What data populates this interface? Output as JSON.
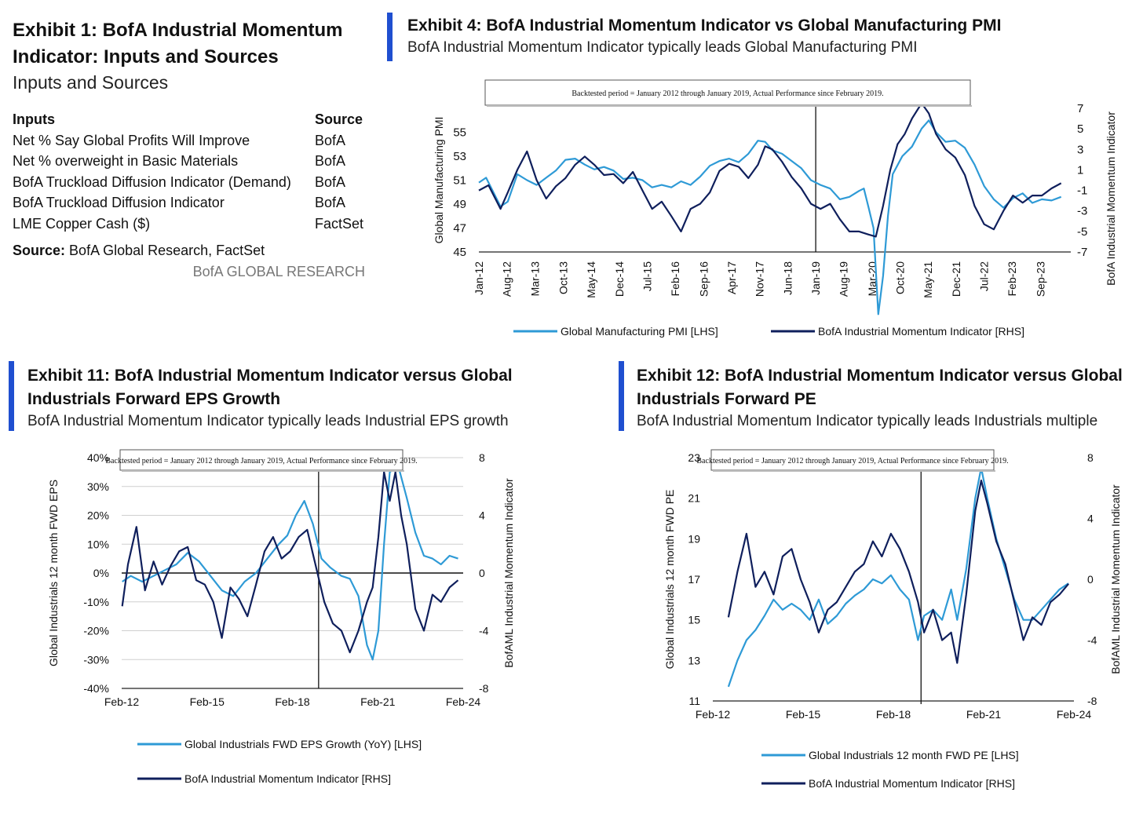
{
  "colors": {
    "accent_bar": "#1f4fd0",
    "pmi_light": "#2e9ad6",
    "momentum_dark": "#0f1f5c"
  },
  "exhibit1": {
    "title": "Exhibit 1: BofA Industrial Momentum Indicator: Inputs and Sources",
    "subtitle": "Inputs and Sources",
    "table": {
      "headers": [
        "Inputs",
        "Source"
      ],
      "rows": [
        [
          "Net % Say Global Profits Will Improve",
          "BofA"
        ],
        [
          "Net % overweight in Basic Materials",
          "BofA"
        ],
        [
          "BofA Truckload Diffusion Indicator (Demand)",
          "BofA"
        ],
        [
          "BofA Truckload Diffusion Indicator",
          "BofA"
        ],
        [
          "LME Copper Cash ($)",
          "FactSet"
        ]
      ]
    },
    "source_label": "Source:",
    "source_text": "BofA Global Research, FactSet",
    "brand": "BofA GLOBAL RESEARCH"
  },
  "exhibit4": {
    "title": "Exhibit 4: BofA Industrial Momentum Indicator vs Global Manufacturing PMI",
    "subtitle": "BofA Industrial Momentum Indicator typically leads Global Manufacturing PMI"
  },
  "exhibit11": {
    "title_line1": "Exhibit 11: BofA Industrial Momentum Indicator versus Global",
    "title_line2": "Industrials Forward EPS Growth",
    "subtitle": "BofA Industrial Momentum Indicator typically leads Industrial EPS growth"
  },
  "exhibit12": {
    "title_line1": "Exhibit 12: BofA Industrial Momentum Indicator versus Global",
    "title_line2": "Industrials Forward PE",
    "subtitle": "BofA Industrial Momentum Indicator typically leads Industrials multiple"
  },
  "chart_data": [
    {
      "id": "pmi",
      "type": "line",
      "annotation": "Backtested period = January 2012 through January 2019, Actual Performance since February 2019.",
      "ylabel_left": "Global Manufacturing PMI",
      "ylabel_right": "BofA Industrial Momentum Indicator",
      "ylim_left": [
        45,
        57
      ],
      "ylim_right": [
        -7,
        7
      ],
      "yticks_left": [
        45,
        47,
        49,
        51,
        53,
        55
      ],
      "yticks_right": [
        -7,
        -5,
        -3,
        -1,
        1,
        3,
        5,
        7
      ],
      "x_range": [
        2012.0,
        2024.3
      ],
      "xticks": [
        {
          "label": "Jan-12",
          "x": 2012.0
        },
        {
          "label": "Aug-12",
          "x": 2012.58
        },
        {
          "label": "Mar-13",
          "x": 2013.17
        },
        {
          "label": "Oct-13",
          "x": 2013.75
        },
        {
          "label": "May-14",
          "x": 2014.33
        },
        {
          "label": "Dec-14",
          "x": 2014.92
        },
        {
          "label": "Jul-15",
          "x": 2015.5
        },
        {
          "label": "Feb-16",
          "x": 2016.08
        },
        {
          "label": "Sep-16",
          "x": 2016.67
        },
        {
          "label": "Apr-17",
          "x": 2017.25
        },
        {
          "label": "Nov-17",
          "x": 2017.83
        },
        {
          "label": "Jun-18",
          "x": 2018.42
        },
        {
          "label": "Jan-19",
          "x": 2019.0
        },
        {
          "label": "Aug-19",
          "x": 2019.58
        },
        {
          "label": "Mar-20",
          "x": 2020.17
        },
        {
          "label": "Oct-20",
          "x": 2020.75
        },
        {
          "label": "May-21",
          "x": 2021.33
        },
        {
          "label": "Dec-21",
          "x": 2021.92
        },
        {
          "label": "Jul-22",
          "x": 2022.5
        },
        {
          "label": "Feb-23",
          "x": 2023.08
        },
        {
          "label": "Sep-23",
          "x": 2023.67
        }
      ],
      "divider_x": 2019.0,
      "series": [
        {
          "name": "Global Manufacturing PMI [LHS]",
          "axis": "left",
          "color": "#2e9ad6",
          "x": [
            2012.0,
            2012.15,
            2012.3,
            2012.45,
            2012.6,
            2012.8,
            2013.0,
            2013.2,
            2013.4,
            2013.6,
            2013.8,
            2014.0,
            2014.2,
            2014.4,
            2014.6,
            2014.8,
            2015.0,
            2015.2,
            2015.4,
            2015.6,
            2015.8,
            2016.0,
            2016.2,
            2016.4,
            2016.6,
            2016.8,
            2017.0,
            2017.2,
            2017.4,
            2017.6,
            2017.8,
            2017.95,
            2018.1,
            2018.3,
            2018.5,
            2018.7,
            2018.9,
            2019.1,
            2019.3,
            2019.5,
            2019.7,
            2019.9,
            2020.0,
            2020.1,
            2020.2,
            2020.3,
            2020.4,
            2020.5,
            2020.6,
            2020.8,
            2021.0,
            2021.2,
            2021.35,
            2021.5,
            2021.7,
            2021.9,
            2022.1,
            2022.3,
            2022.5,
            2022.7,
            2022.9,
            2023.1,
            2023.3,
            2023.5,
            2023.7,
            2023.9,
            2024.1
          ],
          "values": [
            50.8,
            51.2,
            50.0,
            48.8,
            49.2,
            51.5,
            51.0,
            50.6,
            51.2,
            51.8,
            52.7,
            52.8,
            52.3,
            51.9,
            52.1,
            51.8,
            51.1,
            51.2,
            51.0,
            50.4,
            50.6,
            50.4,
            50.9,
            50.6,
            51.3,
            52.2,
            52.6,
            52.8,
            52.5,
            53.2,
            54.3,
            54.2,
            53.5,
            53.2,
            52.6,
            52.0,
            51.0,
            50.6,
            50.3,
            49.4,
            49.6,
            50.1,
            50.3,
            48.7,
            47.0,
            39.8,
            43.0,
            48.0,
            51.5,
            53.0,
            53.8,
            55.3,
            56.0,
            55.0,
            54.2,
            54.3,
            53.7,
            52.3,
            50.5,
            49.4,
            48.7,
            49.5,
            49.9,
            49.1,
            49.4,
            49.3,
            49.6
          ]
        },
        {
          "name": "BofA Industrial Momentum Indicator [RHS]",
          "axis": "right",
          "color": "#0f1f5c",
          "x": [
            2012.0,
            2012.2,
            2012.45,
            2012.6,
            2012.8,
            2013.0,
            2013.2,
            2013.4,
            2013.6,
            2013.8,
            2014.0,
            2014.2,
            2014.4,
            2014.6,
            2014.8,
            2015.0,
            2015.2,
            2015.4,
            2015.6,
            2015.8,
            2016.0,
            2016.2,
            2016.4,
            2016.6,
            2016.8,
            2017.0,
            2017.2,
            2017.4,
            2017.6,
            2017.8,
            2017.95,
            2018.1,
            2018.3,
            2018.5,
            2018.7,
            2018.9,
            2019.1,
            2019.3,
            2019.5,
            2019.7,
            2019.9,
            2020.1,
            2020.25,
            2020.4,
            2020.55,
            2020.7,
            2020.85,
            2021.0,
            2021.2,
            2021.35,
            2021.5,
            2021.7,
            2021.9,
            2022.1,
            2022.3,
            2022.5,
            2022.7,
            2022.9,
            2023.1,
            2023.3,
            2023.5,
            2023.7,
            2023.9,
            2024.1
          ],
          "values": [
            -1.0,
            -0.5,
            -2.8,
            -1.2,
            1.0,
            2.8,
            0.0,
            -1.8,
            -0.6,
            0.2,
            1.5,
            2.3,
            1.5,
            0.5,
            0.6,
            -0.3,
            0.8,
            -1.0,
            -2.8,
            -2.1,
            -3.5,
            -5.0,
            -2.8,
            -2.3,
            -1.2,
            0.9,
            1.6,
            1.3,
            0.2,
            1.5,
            3.3,
            3.0,
            1.8,
            0.3,
            -0.8,
            -2.3,
            -2.8,
            -2.3,
            -3.8,
            -5.0,
            -5.0,
            -5.3,
            -5.5,
            -2.5,
            1.0,
            3.5,
            4.5,
            6.0,
            7.5,
            6.5,
            4.5,
            3.0,
            2.2,
            0.5,
            -2.5,
            -4.3,
            -4.8,
            -3.0,
            -1.5,
            -2.2,
            -1.5,
            -1.5,
            -0.8,
            -0.3
          ]
        }
      ]
    },
    {
      "id": "eps",
      "type": "line",
      "annotation": "Backtested period = January 2012 through January 2019, Actual Performance since February 2019.",
      "ylabel_left": "Global Industrials 12 month FWD EPS",
      "ylabel_right": "BofAML Industrial Momentum Indicator",
      "ylim_left": [
        -40,
        40
      ],
      "ylim_right": [
        -8,
        8
      ],
      "yticks_left": [
        {
          "v": -40,
          "label": "-40%"
        },
        {
          "v": -30,
          "label": "-30%"
        },
        {
          "v": -20,
          "label": "-20%"
        },
        {
          "v": -10,
          "label": "-10%"
        },
        {
          "v": 0,
          "label": "0%"
        },
        {
          "v": 10,
          "label": "10%"
        },
        {
          "v": 20,
          "label": "20%"
        },
        {
          "v": 30,
          "label": "30%"
        },
        {
          "v": 40,
          "label": "40%"
        }
      ],
      "yticks_right": [
        -8,
        -4,
        0,
        4,
        8
      ],
      "x_range": [
        2012.08,
        2024.08
      ],
      "xticks": [
        {
          "label": "Feb-12",
          "x": 2012.08
        },
        {
          "label": "Feb-15",
          "x": 2015.08
        },
        {
          "label": "Feb-18",
          "x": 2018.08
        },
        {
          "label": "Feb-21",
          "x": 2021.08
        },
        {
          "label": "Feb-24",
          "x": 2024.08
        }
      ],
      "divider_x": 2019.0,
      "series": [
        {
          "name": "Global Industrials FWD EPS Growth (YoY) [LHS]",
          "axis": "left",
          "color": "#2e9ad6",
          "x": [
            2012.1,
            2012.4,
            2012.8,
            2013.2,
            2013.6,
            2014.0,
            2014.4,
            2014.8,
            2015.2,
            2015.6,
            2016.0,
            2016.4,
            2016.8,
            2017.2,
            2017.6,
            2017.9,
            2018.2,
            2018.5,
            2018.8,
            2019.1,
            2019.4,
            2019.8,
            2020.1,
            2020.4,
            2020.7,
            2020.9,
            2021.1,
            2021.3,
            2021.5,
            2021.8,
            2022.1,
            2022.4,
            2022.7,
            2023.0,
            2023.3,
            2023.6,
            2023.9
          ],
          "values": [
            -3,
            -1,
            -3,
            -1,
            1,
            3,
            7,
            4,
            -1,
            -6,
            -8,
            -3,
            0,
            5,
            10,
            13,
            20,
            25,
            17,
            5,
            2,
            -1,
            -2,
            -8,
            -25,
            -30,
            -20,
            10,
            35,
            37,
            26,
            14,
            6,
            5,
            3,
            6,
            5
          ]
        },
        {
          "name": "BofA Industrial Momentum Indicator [RHS]",
          "axis": "right",
          "color": "#0f1f5c",
          "x": [
            2012.1,
            2012.3,
            2012.6,
            2012.9,
            2013.2,
            2013.5,
            2013.8,
            2014.1,
            2014.4,
            2014.7,
            2015.0,
            2015.3,
            2015.6,
            2015.9,
            2016.2,
            2016.5,
            2016.8,
            2017.1,
            2017.4,
            2017.7,
            2018.0,
            2018.3,
            2018.6,
            2018.9,
            2019.2,
            2019.5,
            2019.8,
            2020.1,
            2020.4,
            2020.7,
            2020.9,
            2021.1,
            2021.3,
            2021.5,
            2021.7,
            2021.9,
            2022.1,
            2022.4,
            2022.7,
            2023.0,
            2023.3,
            2023.6,
            2023.9
          ],
          "values": [
            -2.3,
            0.6,
            3.2,
            -1.2,
            0.8,
            -0.8,
            0.5,
            1.5,
            1.8,
            -0.5,
            -0.8,
            -2.0,
            -4.5,
            -1.0,
            -1.8,
            -3.0,
            -0.8,
            1.5,
            2.5,
            1.0,
            1.5,
            2.5,
            3.0,
            0.5,
            -2.0,
            -3.5,
            -4.0,
            -5.5,
            -4.0,
            -2.0,
            -1.0,
            2.5,
            7.0,
            5.0,
            7.0,
            4.0,
            2.0,
            -2.5,
            -4.0,
            -1.5,
            -2.0,
            -1.0,
            -0.5
          ]
        }
      ]
    },
    {
      "id": "pe",
      "type": "line",
      "annotation": "Backtested period = January 2012 through January 2019, Actual Performance since February 2019.",
      "ylabel_left": "Global Industrials 12 month FWD PE",
      "ylabel_right": "BofAML Industrial Momentum Indicator",
      "ylim_left": [
        11,
        23
      ],
      "ylim_right": [
        -8,
        8
      ],
      "yticks_left": [
        11,
        13,
        15,
        17,
        19,
        21,
        23
      ],
      "yticks_right": [
        -8,
        -4,
        0,
        4,
        8
      ],
      "x_range": [
        2012.08,
        2024.08
      ],
      "xticks": [
        {
          "label": "Feb-12",
          "x": 2012.08
        },
        {
          "label": "Feb-15",
          "x": 2015.08
        },
        {
          "label": "Feb-18",
          "x": 2018.08
        },
        {
          "label": "Feb-21",
          "x": 2021.08
        },
        {
          "label": "Feb-24",
          "x": 2024.08
        }
      ],
      "divider_x": 2019.0,
      "series": [
        {
          "name": "Global Industrials 12 month FWD PE [LHS]",
          "axis": "left",
          "color": "#2e9ad6",
          "x": [
            2012.6,
            2012.9,
            2013.2,
            2013.5,
            2013.8,
            2014.1,
            2014.4,
            2014.7,
            2015.0,
            2015.3,
            2015.6,
            2015.9,
            2016.2,
            2016.5,
            2016.8,
            2017.1,
            2017.4,
            2017.7,
            2018.0,
            2018.3,
            2018.6,
            2018.9,
            2019.1,
            2019.4,
            2019.7,
            2020.0,
            2020.2,
            2020.5,
            2020.8,
            2021.0,
            2021.2,
            2021.5,
            2021.8,
            2022.1,
            2022.4,
            2022.7,
            2023.0,
            2023.3,
            2023.6,
            2023.9
          ],
          "values": [
            11.7,
            13.0,
            14.0,
            14.5,
            15.2,
            16.0,
            15.5,
            15.8,
            15.5,
            15.0,
            16.0,
            14.8,
            15.2,
            15.8,
            16.2,
            16.5,
            17.0,
            16.8,
            17.2,
            16.5,
            16.0,
            14.0,
            15.2,
            15.5,
            15.0,
            16.5,
            15.0,
            17.5,
            21.0,
            22.5,
            21.0,
            19.0,
            17.5,
            16.0,
            15.0,
            15.0,
            15.5,
            16.0,
            16.5,
            16.8
          ]
        },
        {
          "name": "BofA Industrial Momentum Indicator [RHS]",
          "axis": "right",
          "color": "#0f1f5c",
          "x": [
            2012.6,
            2012.9,
            2013.2,
            2013.5,
            2013.8,
            2014.1,
            2014.4,
            2014.7,
            2015.0,
            2015.3,
            2015.6,
            2015.9,
            2016.2,
            2016.5,
            2016.8,
            2017.1,
            2017.4,
            2017.7,
            2018.0,
            2018.3,
            2018.6,
            2018.9,
            2019.1,
            2019.4,
            2019.7,
            2020.0,
            2020.2,
            2020.5,
            2020.8,
            2021.0,
            2021.2,
            2021.5,
            2021.8,
            2022.1,
            2022.4,
            2022.7,
            2023.0,
            2023.3,
            2023.6,
            2023.9
          ],
          "values": [
            -2.5,
            0.5,
            3.0,
            -0.5,
            0.5,
            -1.0,
            1.5,
            2.0,
            0.0,
            -1.5,
            -3.5,
            -2.0,
            -1.5,
            -0.5,
            0.5,
            1.0,
            2.5,
            1.5,
            3.0,
            2.0,
            0.5,
            -1.5,
            -3.5,
            -2.0,
            -4.0,
            -3.5,
            -5.5,
            -1.0,
            4.5,
            6.5,
            5.0,
            2.5,
            1.0,
            -1.5,
            -4.0,
            -2.5,
            -3.0,
            -1.5,
            -1.0,
            -0.3
          ]
        }
      ]
    }
  ]
}
